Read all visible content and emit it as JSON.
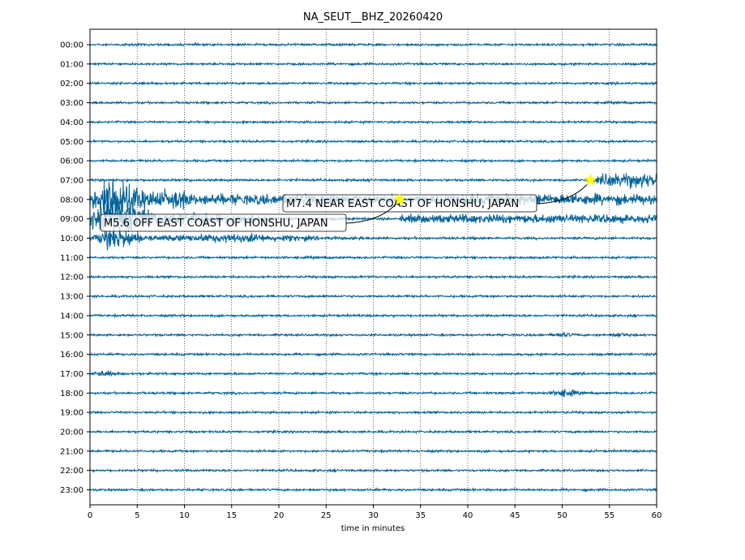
{
  "chart_data": {
    "type": "line",
    "title": "NA_SEUT__BHZ_20260420",
    "xlabel": "time in minutes",
    "ylabel": "",
    "xlim": [
      0,
      60
    ],
    "x_ticks": [
      0,
      5,
      10,
      15,
      20,
      25,
      30,
      35,
      40,
      45,
      50,
      55,
      60
    ],
    "grid": "vertical dotted at each x tick",
    "trace_color": "#00629a",
    "rows": [
      "00:00",
      "01:00",
      "02:00",
      "03:00",
      "04:00",
      "05:00",
      "06:00",
      "07:00",
      "08:00",
      "09:00",
      "10:00",
      "11:00",
      "12:00",
      "13:00",
      "14:00",
      "15:00",
      "16:00",
      "17:00",
      "18:00",
      "19:00",
      "20:00",
      "21:00",
      "22:00",
      "23:00"
    ],
    "events": [
      {
        "label": "M7.4 NEAR EAST COAST OF HONSHU, JAPAN",
        "row": "07:00",
        "minute": 53
      },
      {
        "label": "M5.6 OFF EAST COAST OF HONSHU, JAPAN",
        "row": "08:00",
        "minute": 32.8
      }
    ],
    "marker_color": "#ffff00"
  }
}
